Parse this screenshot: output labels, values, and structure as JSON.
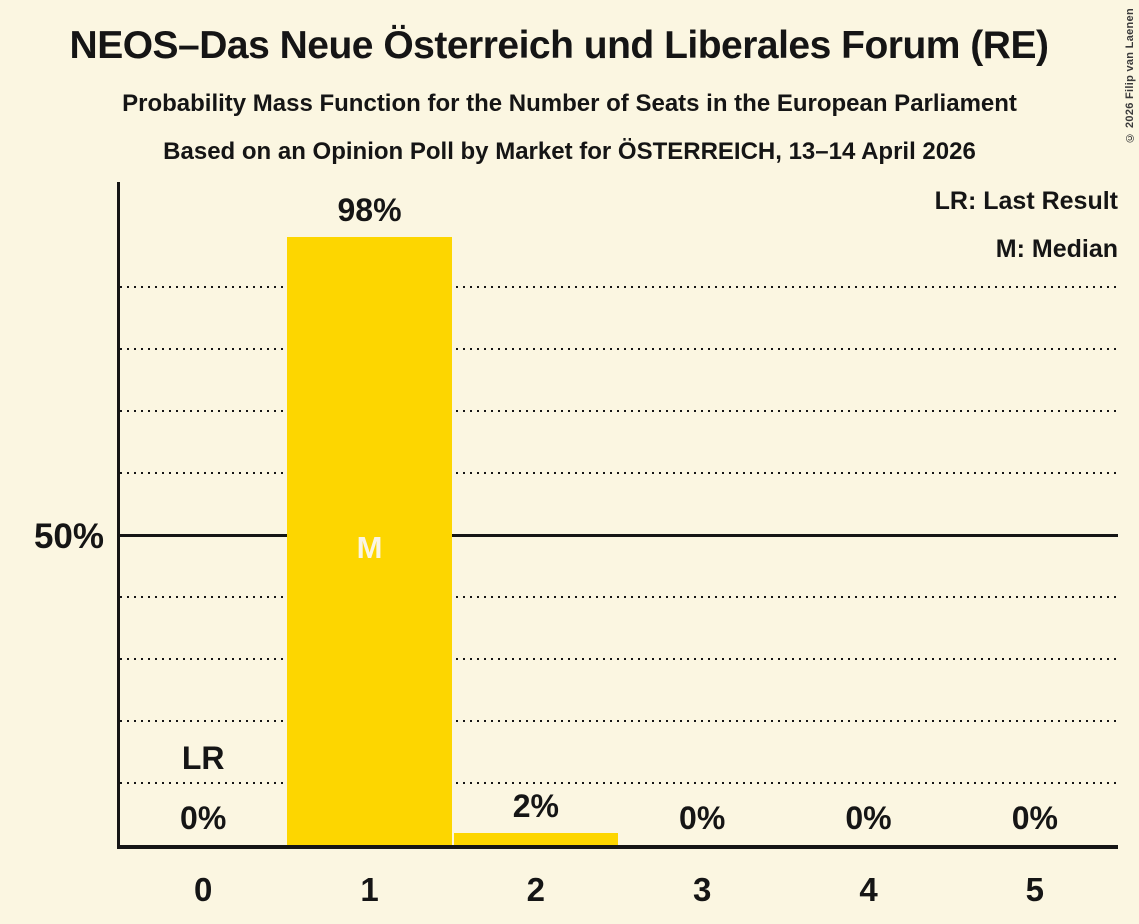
{
  "title": "NEOS–Das Neue Österreich und Liberales Forum (RE)",
  "subtitles": [
    "Probability Mass Function for the Number of Seats in the European Parliament",
    "Based on an Opinion Poll by Market for ÖSTERREICH, 13–14 April 2026"
  ],
  "copyright": "© 2026 Filip van Laenen",
  "legend": {
    "last_result": "LR: Last Result",
    "median": "M: Median"
  },
  "y_axis": {
    "tick_label": "50%",
    "tick_percent": 50
  },
  "colors": {
    "background": "#FBF6E1",
    "bar": "#FDD600",
    "text": "#151515",
    "median_label": "#FAF5E4"
  },
  "chart_data": {
    "type": "bar",
    "title": "Probability Mass Function for the Number of Seats in the European Parliament",
    "categories": [
      "0",
      "1",
      "2",
      "3",
      "4",
      "5"
    ],
    "values": [
      0,
      98,
      2,
      0,
      0,
      0
    ],
    "value_labels": [
      "0%",
      "98%",
      "2%",
      "0%",
      "0%",
      "0%"
    ],
    "xlabel": "",
    "ylabel": "",
    "ylim": [
      0,
      100
    ],
    "grid": "horizontal dotted every 10%",
    "gridlines_percent": [
      10,
      20,
      30,
      40,
      50,
      60,
      70,
      80,
      90
    ],
    "solid_gridline_percent": 50,
    "median_category": "1",
    "median_marker": "M",
    "last_result_category": "0",
    "last_result_marker": "LR",
    "legend_position": "top-right"
  }
}
